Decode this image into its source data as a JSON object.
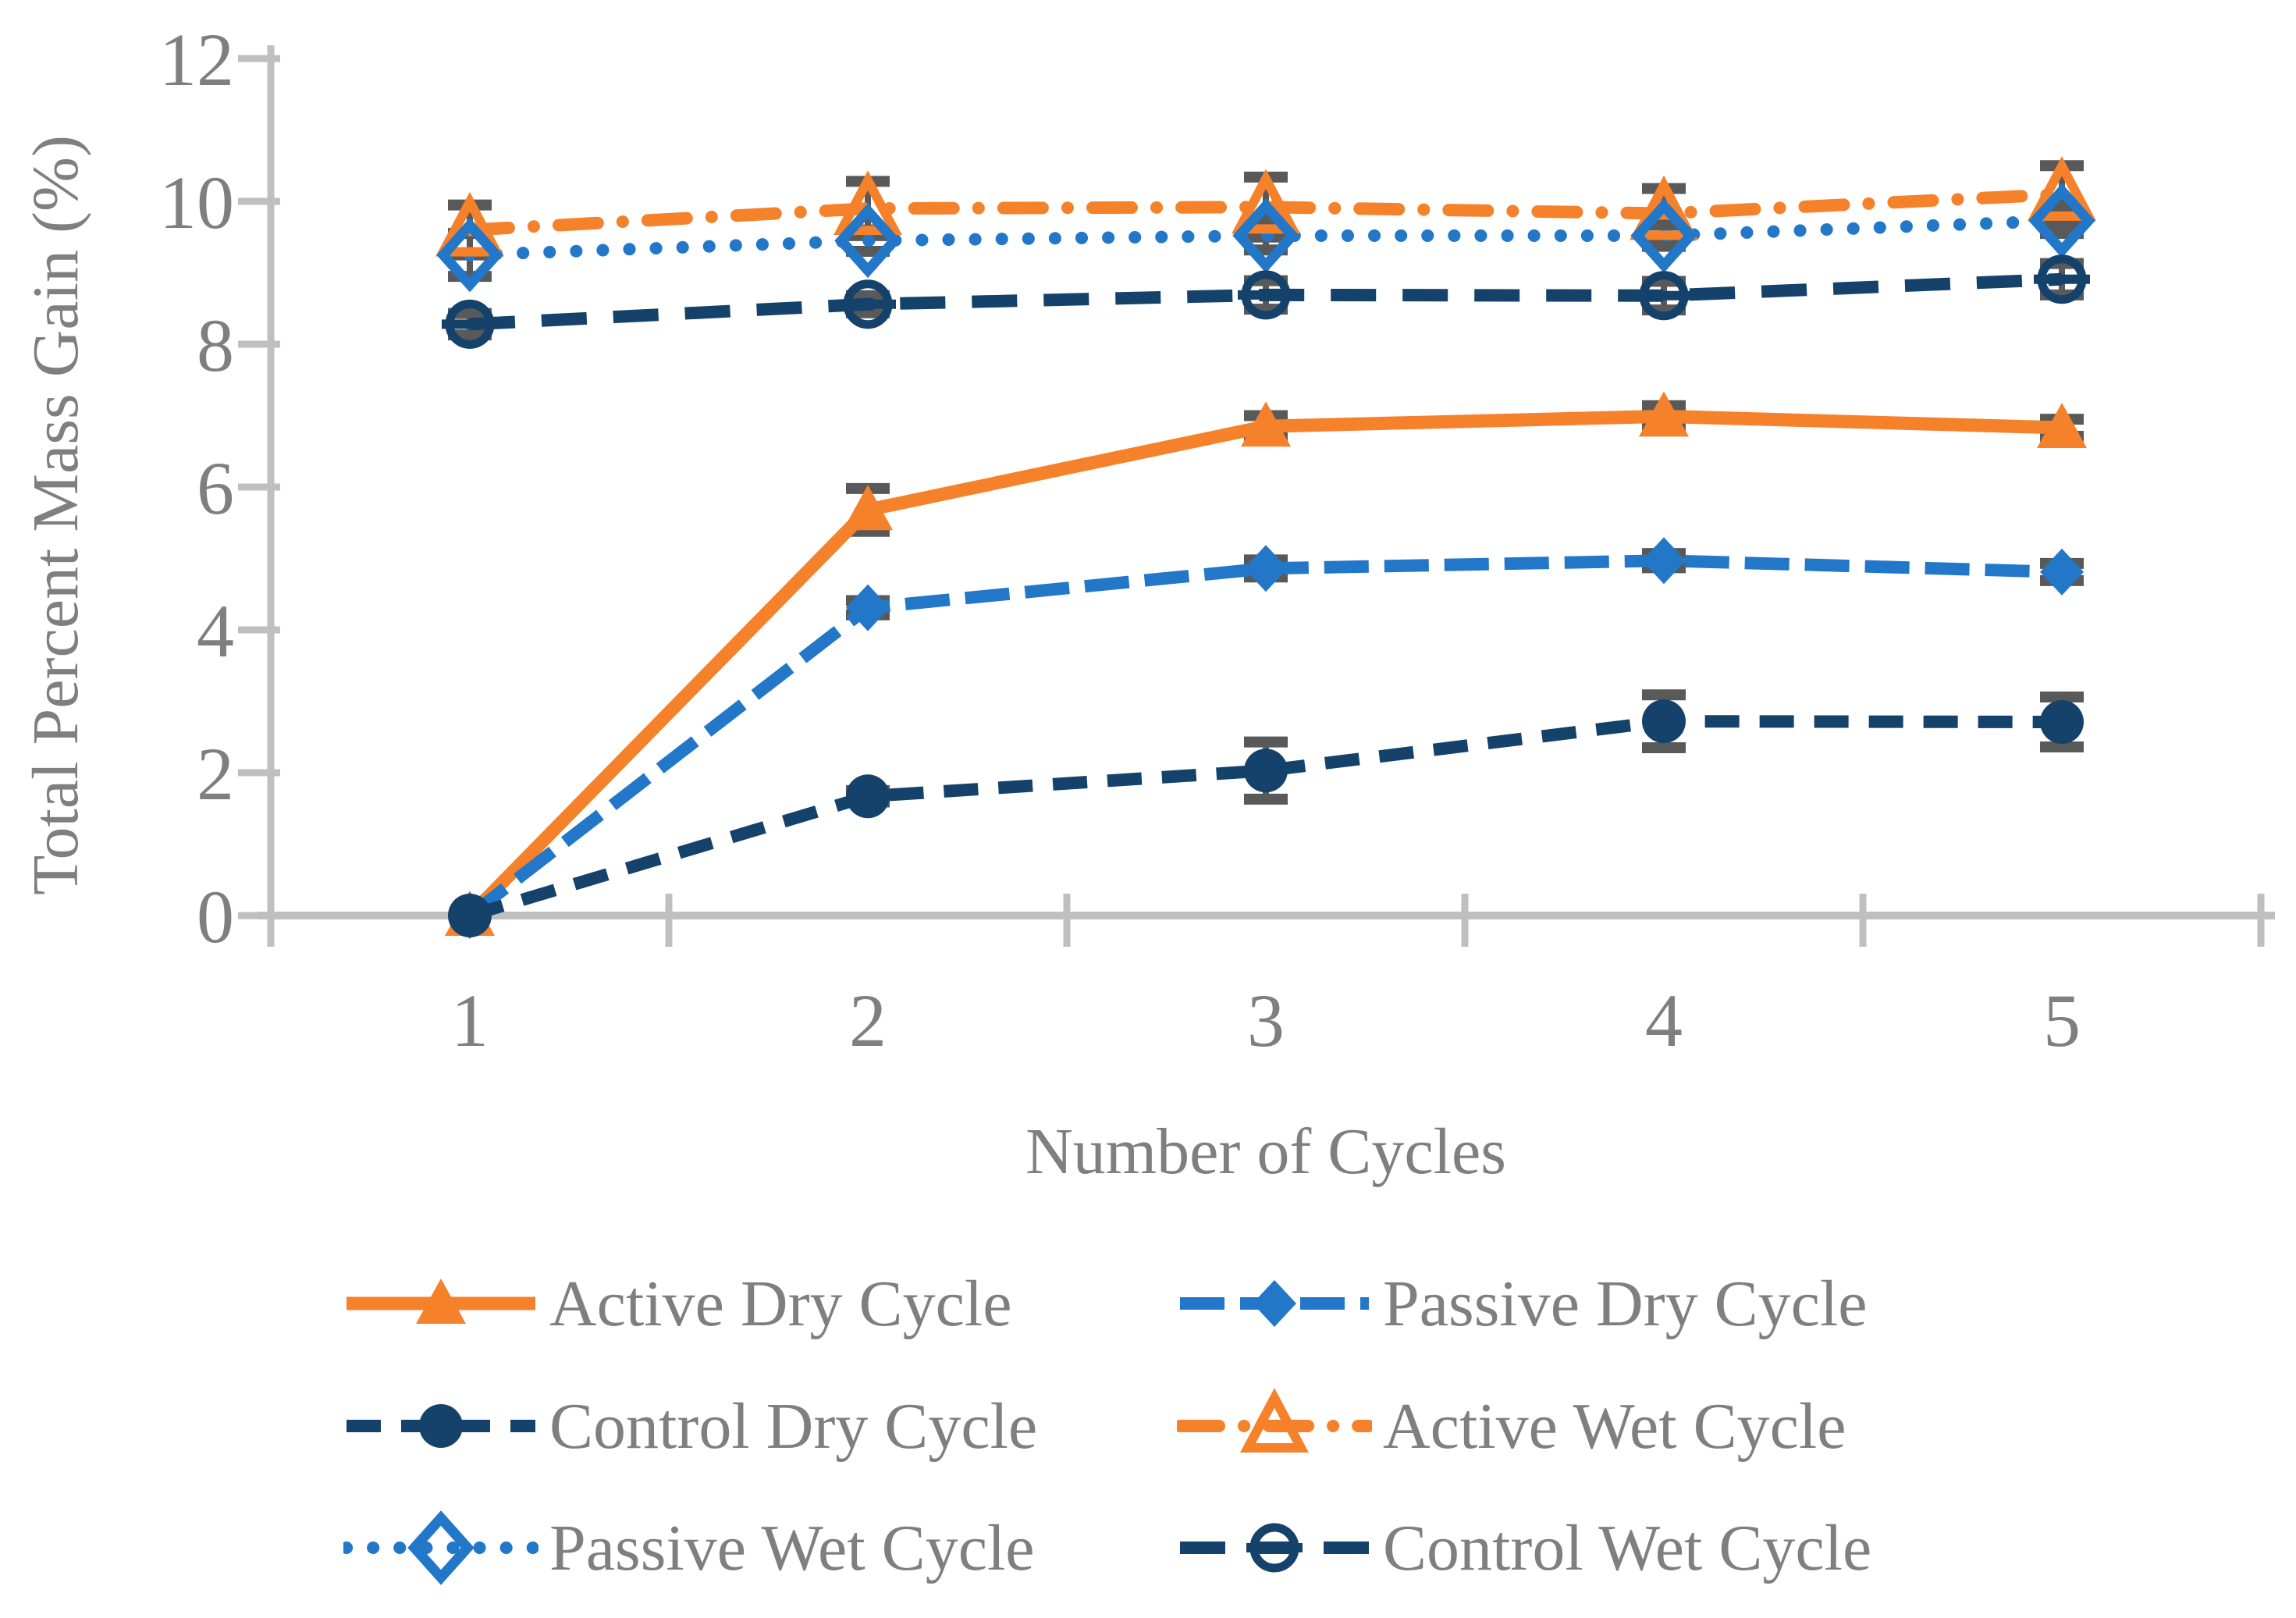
{
  "chart_data": {
    "type": "line",
    "title": "",
    "xlabel": "Number of Cycles",
    "ylabel": "Total Percent Mass Gain (%)",
    "x_categories": [
      "1",
      "2",
      "3",
      "4",
      "5"
    ],
    "y_ticks": [
      "0",
      "2",
      "4",
      "6",
      "8",
      "10",
      "12"
    ],
    "ylim": [
      0,
      12
    ],
    "grid": false,
    "legend_position": "bottom",
    "error_bars": true,
    "colors": {
      "orange": "#F5822B",
      "blue": "#2277C8",
      "navy": "#14426B",
      "axis": "#BFBFBF",
      "labels": "#7f7f7f",
      "error_bar": "#595959"
    },
    "series": [
      {
        "name": "Active Dry Cycle",
        "color": "#F5822B",
        "line": "solid",
        "marker": "triangle-filled",
        "values": [
          0,
          5.68,
          6.85,
          6.99,
          6.83
        ],
        "errors": [
          0,
          0.3,
          0.15,
          0.15,
          0.12
        ]
      },
      {
        "name": "Passive Dry Cycle",
        "color": "#2277C8",
        "line": "long-dash",
        "marker": "diamond-filled",
        "values": [
          0,
          4.31,
          4.86,
          4.97,
          4.81
        ],
        "errors": [
          0,
          0.1,
          0.12,
          0.1,
          0.12
        ]
      },
      {
        "name": "Control Dry Cycle",
        "color": "#14426B",
        "line": "dash",
        "marker": "circle-filled",
        "values": [
          0,
          1.67,
          2.03,
          2.72,
          2.71
        ],
        "errors": [
          0,
          0.08,
          0.4,
          0.37,
          0.35
        ]
      },
      {
        "name": "Active Wet Cycle",
        "color": "#F5822B",
        "line": "dash-dot",
        "marker": "triangle-open",
        "values": [
          9.6,
          9.9,
          9.92,
          9.83,
          10.1
        ],
        "errors": [
          0.35,
          0.38,
          0.42,
          0.35,
          0.4
        ]
      },
      {
        "name": "Passive Wet Cycle",
        "color": "#2277C8",
        "line": "dot",
        "marker": "diamond-open",
        "values": [
          9.25,
          9.45,
          9.52,
          9.52,
          9.73
        ],
        "errors": [
          0.3,
          0.15,
          0.2,
          0.15,
          0.18
        ]
      },
      {
        "name": "Control Wet Cycle",
        "color": "#14426B",
        "line": "long-dash-wide",
        "marker": "circle-open-minus",
        "values": [
          8.28,
          8.56,
          8.69,
          8.68,
          8.91
        ],
        "errors": [
          0.15,
          0.12,
          0.2,
          0.2,
          0.22
        ]
      }
    ]
  }
}
